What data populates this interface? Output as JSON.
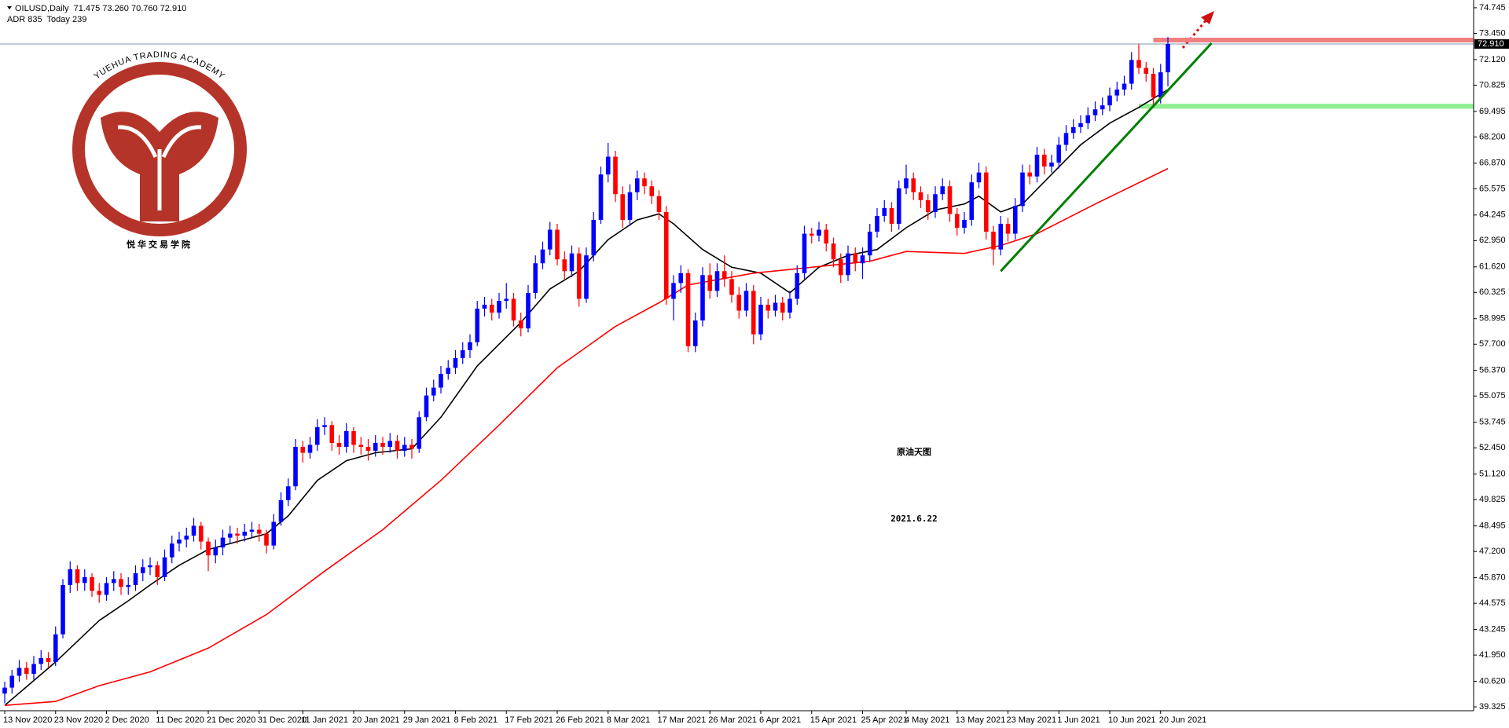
{
  "chart_data": {
    "type": "candlestick",
    "title": "OILUSD,Daily  71.475 73.260 70.760 72.910",
    "subtitle": "ADR 835  Today 239",
    "annotations": [
      "原油天图",
      "2021.6.22"
    ],
    "annotation_color": "#9b1cf2",
    "up_color": "#0000ff",
    "down_color": "#ff0000",
    "ylim": [
      39.13,
      74.94
    ],
    "yticks": [
      74.745,
      {
        "value": 73.45,
        "label": "73.450"
      },
      {
        "value": 72.12,
        "label": "72.120"
      },
      70.825,
      69.495,
      {
        "value": 68.2,
        "label": "68.200"
      },
      {
        "value": 66.87,
        "label": "66.870"
      },
      65.575,
      64.245,
      {
        "value": 62.95,
        "label": "62.950"
      },
      {
        "value": 61.62,
        "label": "61.620"
      },
      60.325,
      58.995,
      {
        "value": 57.7,
        "label": "57.700"
      },
      {
        "value": 56.37,
        "label": "56.370"
      },
      55.075,
      53.745,
      {
        "value": 52.45,
        "label": "52.450"
      },
      {
        "value": 51.12,
        "label": "51.120"
      },
      49.825,
      48.495,
      {
        "value": 47.2,
        "label": "47.200"
      },
      {
        "value": 45.87,
        "label": "45.870"
      },
      44.575,
      43.245,
      {
        "value": 41.95,
        "label": "41.950"
      },
      {
        "value": 40.62,
        "label": "40.620"
      },
      39.325
    ],
    "current_price": {
      "value": 72.91,
      "label": "72.910"
    },
    "categories": [
      "13 Nov 2020",
      null,
      null,
      null,
      null,
      null,
      null,
      "23 Nov 2020",
      null,
      null,
      null,
      null,
      null,
      null,
      "2 Dec 2020",
      null,
      null,
      null,
      null,
      null,
      null,
      "11 Dec 2020",
      null,
      null,
      null,
      null,
      null,
      null,
      "21 Dec 2020",
      null,
      null,
      null,
      null,
      null,
      null,
      "31 Dec 2020",
      null,
      null,
      null,
      null,
      null,
      "11 Jan 2021",
      null,
      null,
      null,
      null,
      null,
      null,
      "20 Jan 2021",
      null,
      null,
      null,
      null,
      null,
      null,
      "29 Jan 2021",
      null,
      null,
      null,
      null,
      null,
      null,
      "8 Feb 2021",
      null,
      null,
      null,
      null,
      null,
      null,
      "17 Feb 2021",
      null,
      null,
      null,
      null,
      null,
      null,
      "26 Feb 2021",
      null,
      null,
      null,
      null,
      null,
      null,
      "8 Mar 2021",
      null,
      null,
      null,
      null,
      null,
      null,
      "17 Mar 2021",
      null,
      null,
      null,
      null,
      null,
      null,
      "26 Mar 2021",
      null,
      null,
      null,
      null,
      null,
      null,
      "6 Apr 2021",
      null,
      null,
      null,
      null,
      null,
      null,
      "15 Apr 2021",
      null,
      null,
      null,
      null,
      null,
      null,
      "25 Apr 2021",
      null,
      null,
      null,
      null,
      null,
      "4 May 2021",
      null,
      null,
      null,
      null,
      null,
      null,
      "13 May 2021",
      null,
      null,
      null,
      null,
      null,
      null,
      "23 May 2021",
      null,
      null,
      null,
      null,
      null,
      null,
      "1 Jun 2021",
      null,
      null,
      null,
      null,
      null,
      null,
      "10 Jun 2021",
      null,
      null,
      null,
      null,
      null,
      null,
      "20 Jun 2021",
      null
    ],
    "candles": [
      [
        40.0,
        40.6,
        39.5,
        40.3
      ],
      [
        40.3,
        41.2,
        40.0,
        40.9
      ],
      [
        40.9,
        41.7,
        40.6,
        41.3
      ],
      [
        41.3,
        41.6,
        40.7,
        41.0
      ],
      [
        41.0,
        41.9,
        40.7,
        41.5
      ],
      [
        41.5,
        42.2,
        41.2,
        41.8
      ],
      [
        41.8,
        42.1,
        41.3,
        41.6
      ],
      [
        41.6,
        43.4,
        41.4,
        43.0
      ],
      [
        43.0,
        45.8,
        42.8,
        45.5
      ],
      [
        45.5,
        46.7,
        45.1,
        46.3
      ],
      [
        46.3,
        46.5,
        45.2,
        45.6
      ],
      [
        45.6,
        46.3,
        45.2,
        45.9
      ],
      [
        45.9,
        46.1,
        44.9,
        45.2
      ],
      [
        45.2,
        45.6,
        44.6,
        45.0
      ],
      [
        45.0,
        45.9,
        44.7,
        45.6
      ],
      [
        45.6,
        46.2,
        45.2,
        45.8
      ],
      [
        45.8,
        46.1,
        45.0,
        45.4
      ],
      [
        45.4,
        45.9,
        45.0,
        45.5
      ],
      [
        45.5,
        46.5,
        45.2,
        46.1
      ],
      [
        46.1,
        46.8,
        45.7,
        46.4
      ],
      [
        46.4,
        46.9,
        46.0,
        46.5
      ],
      [
        46.5,
        46.7,
        45.5,
        45.9
      ],
      [
        45.9,
        47.3,
        45.7,
        46.9
      ],
      [
        46.9,
        48.0,
        46.6,
        47.6
      ],
      [
        47.6,
        48.2,
        47.2,
        47.8
      ],
      [
        47.8,
        48.4,
        47.4,
        48.0
      ],
      [
        48.0,
        48.9,
        47.7,
        48.5
      ],
      [
        48.5,
        48.7,
        47.3,
        47.7
      ],
      [
        47.7,
        47.9,
        46.2,
        47.0
      ],
      [
        47.0,
        47.8,
        46.6,
        47.4
      ],
      [
        47.4,
        48.3,
        47.0,
        47.9
      ],
      [
        47.9,
        48.5,
        47.6,
        48.1
      ],
      [
        48.1,
        48.4,
        47.6,
        48.0
      ],
      [
        48.0,
        48.6,
        47.7,
        48.2
      ],
      [
        48.2,
        48.7,
        47.9,
        48.3
      ],
      [
        48.3,
        48.6,
        47.7,
        48.1
      ],
      [
        48.1,
        48.3,
        47.1,
        47.5
      ],
      [
        47.5,
        49.1,
        47.3,
        48.7
      ],
      [
        48.7,
        50.2,
        48.5,
        49.8
      ],
      [
        49.8,
        50.9,
        49.5,
        50.5
      ],
      [
        50.5,
        52.9,
        50.3,
        52.5
      ],
      [
        52.5,
        52.8,
        51.7,
        52.2
      ],
      [
        52.2,
        53.0,
        51.9,
        52.6
      ],
      [
        52.6,
        53.9,
        52.3,
        53.5
      ],
      [
        53.5,
        54.0,
        53.1,
        53.6
      ],
      [
        53.6,
        53.8,
        52.3,
        52.7
      ],
      [
        52.7,
        53.1,
        52.1,
        52.5
      ],
      [
        52.5,
        53.7,
        52.2,
        53.3
      ],
      [
        53.3,
        53.5,
        52.2,
        52.6
      ],
      [
        52.6,
        53.0,
        52.1,
        52.5
      ],
      [
        52.5,
        52.9,
        51.8,
        52.3
      ],
      [
        52.3,
        53.1,
        52.0,
        52.7
      ],
      [
        52.7,
        53.0,
        52.1,
        52.5
      ],
      [
        52.5,
        53.2,
        52.2,
        52.8
      ],
      [
        52.8,
        53.1,
        51.9,
        52.3
      ],
      [
        52.3,
        53.0,
        52.0,
        52.6
      ],
      [
        52.6,
        52.9,
        51.9,
        52.4
      ],
      [
        52.4,
        54.3,
        52.2,
        54.0
      ],
      [
        54.0,
        55.5,
        53.8,
        55.1
      ],
      [
        55.1,
        55.9,
        54.8,
        55.5
      ],
      [
        55.5,
        56.6,
        55.2,
        56.2
      ],
      [
        56.2,
        56.9,
        55.9,
        56.5
      ],
      [
        56.5,
        57.4,
        56.2,
        57.0
      ],
      [
        57.0,
        57.8,
        56.7,
        57.4
      ],
      [
        57.4,
        58.2,
        57.0,
        57.8
      ],
      [
        57.8,
        59.9,
        57.6,
        59.5
      ],
      [
        59.5,
        60.1,
        59.1,
        59.7
      ],
      [
        59.7,
        60.0,
        58.9,
        59.3
      ],
      [
        59.3,
        60.3,
        59.0,
        59.9
      ],
      [
        59.9,
        60.8,
        59.5,
        60.0
      ],
      [
        60.0,
        60.3,
        58.6,
        58.9
      ],
      [
        58.9,
        59.3,
        58.1,
        58.5
      ],
      [
        58.5,
        60.7,
        58.3,
        60.3
      ],
      [
        60.3,
        62.2,
        60.0,
        61.8
      ],
      [
        61.8,
        62.9,
        61.5,
        62.5
      ],
      [
        62.5,
        63.9,
        62.2,
        63.5
      ],
      [
        63.5,
        63.8,
        61.7,
        62.0
      ],
      [
        62.0,
        62.4,
        61.0,
        61.4
      ],
      [
        61.4,
        62.7,
        61.1,
        62.3
      ],
      [
        62.3,
        62.6,
        59.6,
        60.0
      ],
      [
        60.0,
        62.6,
        59.8,
        62.2
      ],
      [
        62.2,
        64.4,
        61.9,
        64.0
      ],
      [
        64.0,
        66.7,
        63.8,
        66.3
      ],
      [
        66.3,
        67.9,
        65.9,
        67.2
      ],
      [
        67.2,
        67.5,
        64.9,
        65.3
      ],
      [
        65.3,
        65.7,
        63.6,
        64.0
      ],
      [
        64.0,
        65.8,
        63.7,
        65.4
      ],
      [
        65.4,
        66.5,
        65.0,
        66.1
      ],
      [
        66.1,
        66.4,
        65.3,
        65.7
      ],
      [
        65.7,
        66.0,
        64.8,
        65.2
      ],
      [
        65.2,
        65.5,
        64.0,
        64.4
      ],
      [
        64.4,
        64.7,
        59.7,
        60.0
      ],
      [
        60.0,
        61.2,
        58.9,
        60.8
      ],
      [
        60.8,
        61.7,
        60.3,
        61.3
      ],
      [
        61.3,
        61.5,
        57.3,
        57.6
      ],
      [
        57.6,
        59.3,
        57.3,
        58.9
      ],
      [
        58.9,
        61.6,
        58.6,
        61.2
      ],
      [
        61.2,
        61.8,
        60.0,
        60.4
      ],
      [
        60.4,
        61.8,
        60.1,
        61.4
      ],
      [
        61.4,
        62.2,
        60.6,
        61.0
      ],
      [
        61.0,
        61.4,
        59.8,
        60.2
      ],
      [
        60.2,
        60.6,
        59.0,
        59.4
      ],
      [
        59.4,
        60.8,
        59.1,
        60.4
      ],
      [
        60.4,
        60.7,
        57.7,
        58.2
      ],
      [
        58.2,
        60.1,
        57.9,
        59.7
      ],
      [
        59.7,
        60.0,
        59.0,
        59.4
      ],
      [
        59.4,
        60.2,
        59.1,
        59.8
      ],
      [
        59.8,
        60.1,
        58.9,
        59.3
      ],
      [
        59.3,
        60.4,
        59.0,
        60.0
      ],
      [
        60.0,
        61.7,
        59.7,
        61.3
      ],
      [
        61.3,
        63.7,
        61.0,
        63.3
      ],
      [
        63.3,
        63.6,
        62.8,
        63.2
      ],
      [
        63.2,
        63.9,
        62.9,
        63.5
      ],
      [
        63.5,
        63.8,
        62.4,
        62.8
      ],
      [
        62.8,
        63.1,
        61.6,
        62.0
      ],
      [
        62.0,
        62.3,
        60.8,
        61.2
      ],
      [
        61.2,
        62.7,
        60.9,
        62.3
      ],
      [
        62.3,
        62.6,
        61.4,
        61.8
      ],
      [
        61.8,
        62.6,
        61.0,
        62.2
      ],
      [
        62.2,
        63.8,
        61.9,
        63.4
      ],
      [
        63.4,
        64.6,
        63.1,
        64.2
      ],
      [
        64.2,
        65.0,
        63.9,
        64.6
      ],
      [
        64.6,
        64.9,
        63.4,
        63.8
      ],
      [
        63.8,
        66.0,
        63.5,
        65.6
      ],
      [
        65.6,
        66.8,
        65.3,
        66.1
      ],
      [
        66.1,
        66.4,
        65.0,
        65.4
      ],
      [
        65.4,
        65.7,
        64.6,
        65.0
      ],
      [
        65.0,
        65.3,
        64.0,
        64.4
      ],
      [
        64.4,
        65.7,
        64.1,
        65.3
      ],
      [
        65.3,
        66.1,
        65.0,
        65.7
      ],
      [
        65.7,
        66.0,
        63.9,
        64.3
      ],
      [
        64.3,
        64.6,
        63.2,
        63.6
      ],
      [
        63.6,
        64.4,
        63.3,
        64.0
      ],
      [
        64.0,
        66.3,
        63.7,
        65.9
      ],
      [
        65.9,
        66.9,
        65.6,
        66.4
      ],
      [
        66.4,
        66.7,
        63.0,
        63.4
      ],
      [
        63.4,
        63.7,
        61.7,
        62.5
      ],
      [
        62.5,
        64.2,
        62.2,
        63.8
      ],
      [
        63.8,
        64.1,
        62.9,
        63.3
      ],
      [
        63.3,
        65.1,
        63.0,
        64.7
      ],
      [
        64.7,
        66.8,
        64.4,
        66.4
      ],
      [
        66.4,
        66.8,
        65.8,
        66.2
      ],
      [
        66.2,
        67.7,
        65.9,
        67.3
      ],
      [
        67.3,
        67.6,
        66.3,
        66.7
      ],
      [
        66.7,
        67.3,
        66.4,
        66.9
      ],
      [
        66.9,
        68.2,
        66.6,
        67.8
      ],
      [
        67.8,
        68.8,
        67.5,
        68.4
      ],
      [
        68.4,
        69.1,
        68.1,
        68.7
      ],
      [
        68.7,
        69.3,
        68.4,
        68.9
      ],
      [
        68.9,
        69.7,
        68.6,
        69.3
      ],
      [
        69.3,
        70.0,
        69.0,
        69.6
      ],
      [
        69.6,
        70.2,
        69.3,
        69.8
      ],
      [
        69.8,
        70.7,
        69.5,
        70.3
      ],
      [
        70.3,
        71.0,
        70.0,
        70.6
      ],
      [
        70.6,
        71.3,
        70.3,
        70.9
      ],
      [
        70.9,
        72.5,
        70.6,
        72.1
      ],
      [
        72.1,
        72.9,
        71.4,
        71.7
      ],
      [
        71.7,
        72.0,
        71.0,
        71.4
      ],
      [
        71.4,
        71.7,
        69.7,
        70.2
      ],
      [
        70.2,
        71.9,
        69.9,
        71.475
      ],
      [
        71.475,
        73.26,
        70.76,
        72.91
      ]
    ],
    "moving_averages": [
      {
        "color": "#000000",
        "x": [
          0,
          7,
          13,
          17,
          20,
          24,
          28,
          32,
          36,
          39,
          43,
          47,
          51,
          56,
          60,
          65,
          71,
          75,
          79,
          83,
          87,
          90,
          92,
          96,
          100,
          104,
          108,
          112,
          116,
          120,
          124,
          128,
          132,
          134,
          137,
          140,
          144,
          148,
          152,
          156,
          160
        ],
        "values": [
          39.4,
          41.6,
          43.7,
          44.7,
          45.5,
          46.5,
          47.3,
          47.7,
          48.1,
          49.0,
          50.8,
          51.8,
          52.2,
          52.4,
          54.0,
          56.6,
          58.8,
          60.5,
          61.4,
          63.0,
          64.0,
          64.3,
          63.8,
          62.5,
          61.6,
          61.3,
          60.3,
          61.6,
          62.2,
          62.5,
          63.6,
          64.5,
          64.8,
          65.2,
          64.4,
          64.8,
          66.3,
          67.8,
          68.9,
          69.7,
          70.6
        ]
      },
      {
        "color": "#ff0000",
        "x": [
          0,
          7,
          13,
          20,
          28,
          36,
          44,
          52,
          60,
          68,
          76,
          84,
          90,
          94,
          103,
          111,
          119,
          124,
          132,
          137,
          142,
          150,
          160
        ],
        "values": [
          39.4,
          39.6,
          40.4,
          41.1,
          42.3,
          44.0,
          46.2,
          48.3,
          50.8,
          53.6,
          56.5,
          58.6,
          59.8,
          60.7,
          61.3,
          61.6,
          61.9,
          62.4,
          62.3,
          62.7,
          63.3,
          64.8,
          66.6
        ]
      }
    ],
    "zones": [
      {
        "color": "#f08080",
        "from": 158,
        "ylim": [
          72.99,
          73.23
        ]
      },
      {
        "color": "#90ee90",
        "from": 156,
        "ylim": [
          69.63,
          69.88
        ]
      }
    ],
    "trendline": {
      "color": "#008000",
      "points": [
        [
          137,
          61.4
        ],
        [
          166,
          72.95
        ]
      ]
    }
  },
  "logo": {
    "text": "YUEHUA TRADING ACADEMY",
    "text_cn": "悦华交易学院"
  }
}
